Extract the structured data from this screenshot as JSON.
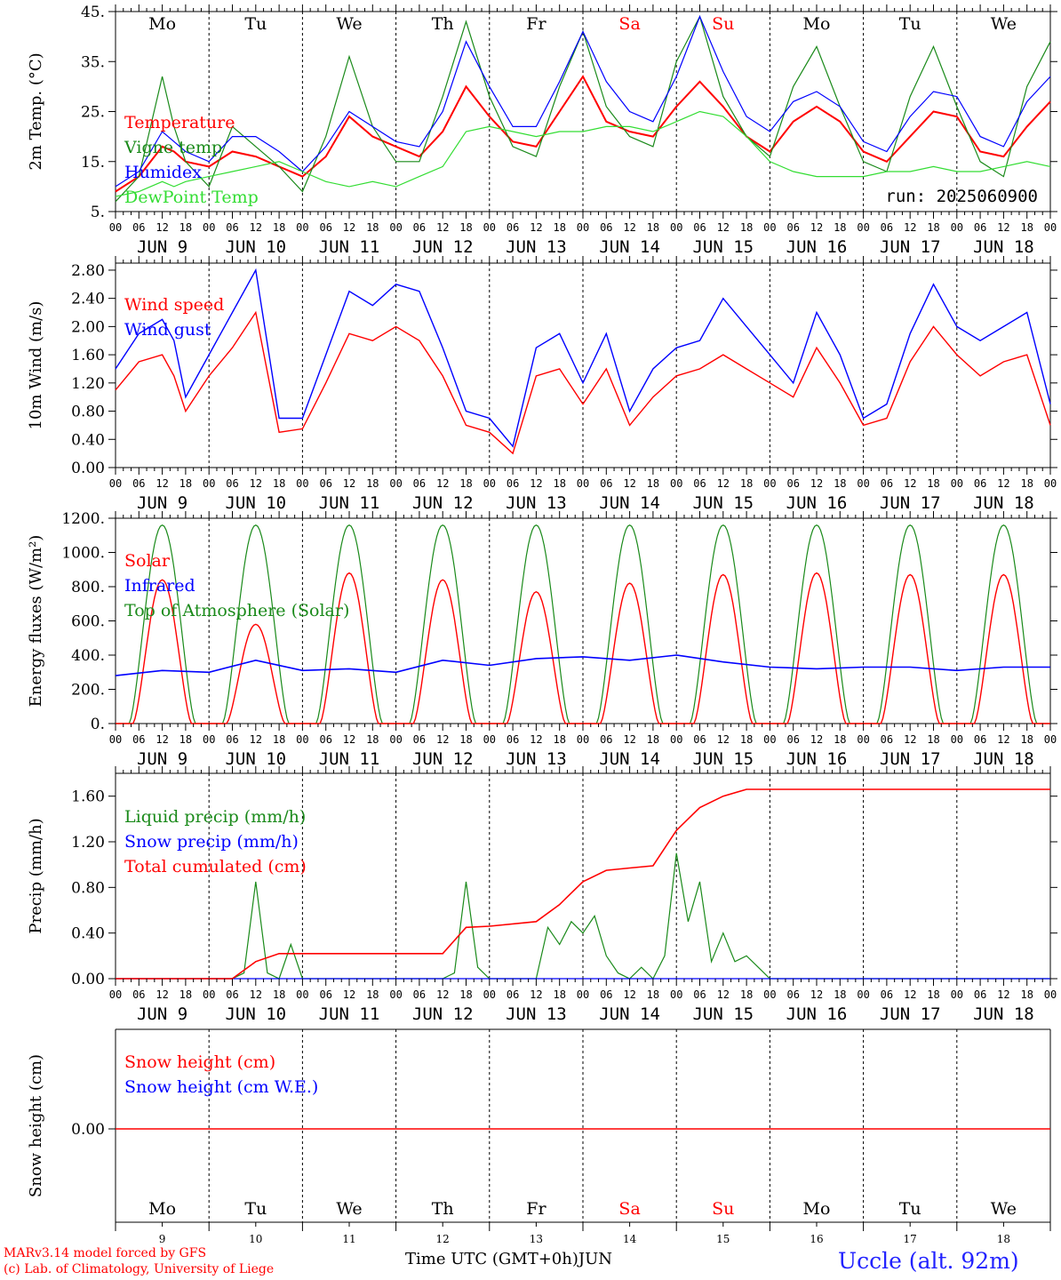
{
  "colors": {
    "red": "#ff0000",
    "green": "#1a8a1a",
    "blue": "#0000ff",
    "lightgreen": "#33dd33",
    "black": "#000000",
    "footer_red": "#ff0000",
    "station_blue": "#2222ff"
  },
  "x_axis": {
    "hour_ticks": [
      "00",
      "06",
      "12",
      "18"
    ],
    "end_tick": "00",
    "dates": [
      "JUN  9",
      "JUN 10",
      "JUN 11",
      "JUN 12",
      "JUN 13",
      "JUN 14",
      "JUN 15",
      "JUN 16",
      "JUN 17",
      "JUN 18"
    ],
    "weekdays": [
      "Mo",
      "Tu",
      "We",
      "Th",
      "Fr",
      "Sa",
      "Su",
      "Mo",
      "Tu",
      "We"
    ],
    "weekday_colors": [
      "black",
      "black",
      "black",
      "black",
      "black",
      "red",
      "red",
      "black",
      "black",
      "black"
    ],
    "day_numbers": [
      "9",
      "10",
      "11",
      "12",
      "13",
      "14",
      "15",
      "16",
      "17",
      "18"
    ],
    "label": "Time UTC (GMT+0h)",
    "month": "JUN"
  },
  "chart_data": [
    {
      "type": "line",
      "ylabel": "2m Temp. (°C)",
      "ylim": [
        5,
        45
      ],
      "yticks": [
        "5.",
        "15.",
        "25.",
        "35.",
        "45."
      ],
      "ytick_values": [
        5,
        15,
        25,
        35,
        45
      ],
      "run_label": "run: 2025060900",
      "x_unit": "hours since JUN 9 00 UTC",
      "series": [
        {
          "name": "Temperature",
          "color": "red",
          "x": [
            0,
            6,
            12,
            15,
            18,
            24,
            30,
            36,
            42,
            48,
            54,
            60,
            66,
            72,
            78,
            84,
            90,
            96,
            102,
            108,
            114,
            120,
            126,
            132,
            138,
            144,
            150,
            156,
            162,
            168,
            174,
            180,
            186,
            192,
            198,
            204,
            210,
            216,
            222,
            228,
            234,
            240
          ],
          "y": [
            9,
            12,
            18,
            17,
            15,
            14,
            17,
            16,
            14,
            12,
            16,
            24,
            20,
            18,
            16,
            21,
            30,
            24,
            19,
            18,
            25,
            32,
            23,
            21,
            20,
            26,
            31,
            26,
            20,
            17,
            23,
            26,
            23,
            17,
            15,
            20,
            25,
            24,
            17,
            16,
            22,
            27
          ]
        },
        {
          "name": "Vigne temp",
          "color": "green",
          "x": [
            0,
            6,
            12,
            15,
            18,
            24,
            30,
            36,
            42,
            48,
            54,
            60,
            66,
            72,
            78,
            84,
            90,
            96,
            102,
            108,
            114,
            120,
            126,
            132,
            138,
            144,
            150,
            156,
            162,
            168,
            174,
            180,
            186,
            192,
            198,
            204,
            210,
            216,
            222,
            228,
            234,
            240
          ],
          "y": [
            7,
            12,
            32,
            22,
            15,
            10,
            22,
            18,
            14,
            9,
            20,
            36,
            22,
            15,
            15,
            28,
            43,
            28,
            18,
            16,
            30,
            41,
            26,
            20,
            18,
            35,
            44,
            28,
            20,
            16,
            30,
            38,
            26,
            15,
            13,
            28,
            38,
            26,
            15,
            12,
            30,
            39
          ]
        },
        {
          "name": "Humidex",
          "color": "blue",
          "x": [
            0,
            6,
            12,
            15,
            18,
            24,
            30,
            36,
            42,
            48,
            54,
            60,
            66,
            72,
            78,
            84,
            90,
            96,
            102,
            108,
            114,
            120,
            126,
            132,
            138,
            144,
            150,
            156,
            162,
            168,
            174,
            180,
            186,
            192,
            198,
            204,
            210,
            216,
            222,
            228,
            234,
            240
          ],
          "y": [
            10,
            13,
            21,
            19,
            17,
            15,
            20,
            20,
            17,
            13,
            18,
            25,
            22,
            19,
            18,
            25,
            39,
            30,
            22,
            22,
            31,
            41,
            31,
            25,
            23,
            32,
            44,
            33,
            24,
            21,
            27,
            29,
            26,
            19,
            17,
            24,
            29,
            28,
            20,
            18,
            27,
            32
          ]
        },
        {
          "name": "DewPoint Temp",
          "color": "lightgreen",
          "x": [
            0,
            6,
            12,
            15,
            18,
            24,
            30,
            36,
            42,
            48,
            54,
            60,
            66,
            72,
            78,
            84,
            90,
            96,
            102,
            108,
            114,
            120,
            126,
            132,
            138,
            144,
            150,
            156,
            162,
            168,
            174,
            180,
            186,
            192,
            198,
            204,
            210,
            216,
            222,
            228,
            234,
            240
          ],
          "y": [
            8,
            9,
            11,
            10,
            11,
            12,
            13,
            14,
            15,
            13,
            11,
            10,
            11,
            10,
            12,
            14,
            21,
            22,
            21,
            20,
            21,
            21,
            22,
            22,
            21,
            23,
            25,
            24,
            20,
            15,
            13,
            12,
            12,
            12,
            13,
            13,
            14,
            13,
            13,
            14,
            15,
            14
          ]
        }
      ]
    },
    {
      "type": "line",
      "ylabel": "10m Wind (m/s)",
      "ylim": [
        0,
        2.9
      ],
      "yticks": [
        "0.00",
        "0.40",
        "0.80",
        "1.20",
        "1.60",
        "2.00",
        "2.40",
        "2.80"
      ],
      "ytick_values": [
        0,
        0.4,
        0.8,
        1.2,
        1.6,
        2.0,
        2.4,
        2.8
      ],
      "series": [
        {
          "name": "Wind speed",
          "color": "red",
          "x": [
            0,
            6,
            12,
            15,
            18,
            24,
            30,
            36,
            42,
            48,
            54,
            60,
            66,
            72,
            78,
            84,
            90,
            96,
            102,
            108,
            114,
            120,
            126,
            132,
            138,
            144,
            150,
            156,
            162,
            168,
            174,
            180,
            186,
            192,
            198,
            204,
            210,
            216,
            222,
            228,
            234,
            240
          ],
          "y": [
            1.1,
            1.5,
            1.6,
            1.3,
            0.8,
            1.3,
            1.7,
            2.2,
            0.5,
            0.55,
            1.2,
            1.9,
            1.8,
            2.0,
            1.8,
            1.3,
            0.6,
            0.5,
            0.2,
            1.3,
            1.4,
            0.9,
            1.4,
            0.6,
            1.0,
            1.3,
            1.4,
            1.6,
            1.4,
            1.2,
            1.0,
            1.7,
            1.2,
            0.6,
            0.7,
            1.5,
            2.0,
            1.6,
            1.3,
            1.5,
            1.6,
            0.6
          ]
        },
        {
          "name": "Wind gust",
          "color": "blue",
          "x": [
            0,
            6,
            12,
            15,
            18,
            24,
            30,
            36,
            42,
            48,
            54,
            60,
            66,
            72,
            78,
            84,
            90,
            96,
            102,
            108,
            114,
            120,
            126,
            132,
            138,
            144,
            150,
            156,
            162,
            168,
            174,
            180,
            186,
            192,
            198,
            204,
            210,
            216,
            222,
            228,
            234,
            240
          ],
          "y": [
            1.4,
            1.9,
            2.1,
            1.8,
            1.0,
            1.6,
            2.2,
            2.8,
            0.7,
            0.7,
            1.6,
            2.5,
            2.3,
            2.6,
            2.5,
            1.7,
            0.8,
            0.7,
            0.3,
            1.7,
            1.9,
            1.2,
            1.9,
            0.8,
            1.4,
            1.7,
            1.8,
            2.4,
            2.0,
            1.6,
            1.2,
            2.2,
            1.6,
            0.7,
            0.9,
            1.9,
            2.6,
            2.0,
            1.8,
            2.0,
            2.2,
            0.9
          ]
        }
      ]
    },
    {
      "type": "line",
      "ylabel": "Energy fluxes (W/m²)",
      "ylim": [
        0,
        1200
      ],
      "yticks": [
        "0.",
        "200.",
        "400.",
        "600.",
        "800.",
        "1000.",
        "1200."
      ],
      "ytick_values": [
        0,
        200,
        400,
        600,
        800,
        1000,
        1200
      ],
      "series": [
        {
          "name": "Solar",
          "color": "red",
          "daily_peaks": [
            840,
            580,
            880,
            840,
            770,
            820,
            870,
            880,
            870,
            870
          ]
        },
        {
          "name": "Infrared",
          "color": "blue",
          "x": [
            0,
            12,
            24,
            36,
            48,
            60,
            72,
            84,
            96,
            108,
            120,
            132,
            144,
            156,
            168,
            180,
            192,
            204,
            216,
            228,
            240
          ],
          "y": [
            280,
            310,
            300,
            370,
            310,
            320,
            300,
            370,
            340,
            380,
            390,
            370,
            400,
            360,
            330,
            320,
            330,
            330,
            310,
            330,
            330
          ]
        },
        {
          "name": "Top of Atmosphere (Solar)",
          "color": "green",
          "daily_peaks": [
            1160,
            1160,
            1160,
            1160,
            1160,
            1160,
            1160,
            1160,
            1160,
            1160
          ]
        }
      ]
    },
    {
      "type": "line",
      "ylabel": "Precip (mm/h)",
      "ylim": [
        0,
        1.8
      ],
      "yticks": [
        "0.00",
        "0.40",
        "0.80",
        "1.20",
        "1.60"
      ],
      "ytick_values": [
        0,
        0.4,
        0.8,
        1.2,
        1.6
      ],
      "series": [
        {
          "name": "Liquid precip (mm/h)",
          "color": "green",
          "x": [
            0,
            30,
            33,
            36,
            39,
            42,
            45,
            48,
            84,
            87,
            90,
            93,
            96,
            108,
            111,
            114,
            117,
            120,
            123,
            126,
            129,
            132,
            135,
            138,
            141,
            144,
            147,
            150,
            153,
            156,
            159,
            162,
            165,
            168,
            240
          ],
          "y": [
            0,
            0,
            0.05,
            0.85,
            0.05,
            0,
            0.3,
            0,
            0,
            0.05,
            0.85,
            0.1,
            0,
            0,
            0.45,
            0.3,
            0.5,
            0.4,
            0.55,
            0.2,
            0.05,
            0,
            0.1,
            0,
            0.2,
            1.1,
            0.5,
            0.85,
            0.15,
            0.4,
            0.15,
            0.2,
            0.1,
            0,
            0
          ]
        },
        {
          "name": "Snow precip (mm/h)",
          "color": "blue",
          "x": [
            0,
            240
          ],
          "y": [
            0,
            0
          ]
        },
        {
          "name": "Total cumulated (cm)",
          "color": "red",
          "x": [
            0,
            30,
            36,
            42,
            84,
            90,
            96,
            108,
            114,
            120,
            126,
            132,
            138,
            144,
            150,
            156,
            162,
            168,
            240
          ],
          "y": [
            0,
            0,
            0.15,
            0.22,
            0.22,
            0.45,
            0.46,
            0.5,
            0.65,
            0.85,
            0.95,
            0.97,
            0.99,
            1.3,
            1.5,
            1.6,
            1.66,
            1.66,
            1.66
          ]
        }
      ]
    },
    {
      "type": "line",
      "ylabel": "Snow height (cm)",
      "yticks": [
        "0.00"
      ],
      "series": [
        {
          "name": "Snow height (cm)",
          "color": "red",
          "x": [
            0,
            240
          ],
          "y": [
            0,
            0
          ]
        },
        {
          "name": "Snow height (cm W.E.)",
          "color": "blue",
          "x": [
            0,
            240
          ],
          "y": [
            0,
            0
          ]
        }
      ]
    }
  ],
  "footer": {
    "line1": "MARv3.14 model forced by GFS",
    "line2": "(c) Lab. of Climatology, University of Liege",
    "station": "Uccle (alt. 92m)"
  }
}
